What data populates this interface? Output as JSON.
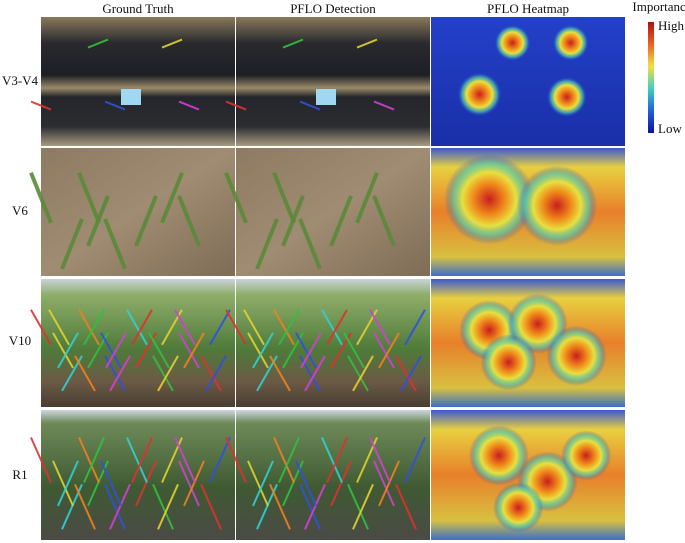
{
  "columns": [
    "Ground Truth",
    "PFLO Detection",
    "PFLO Heatmap"
  ],
  "rows": [
    "V3-V4",
    "V6",
    "V10",
    "R1"
  ],
  "colorbar": {
    "title": "Importance",
    "high": "High",
    "low": "Low"
  }
}
